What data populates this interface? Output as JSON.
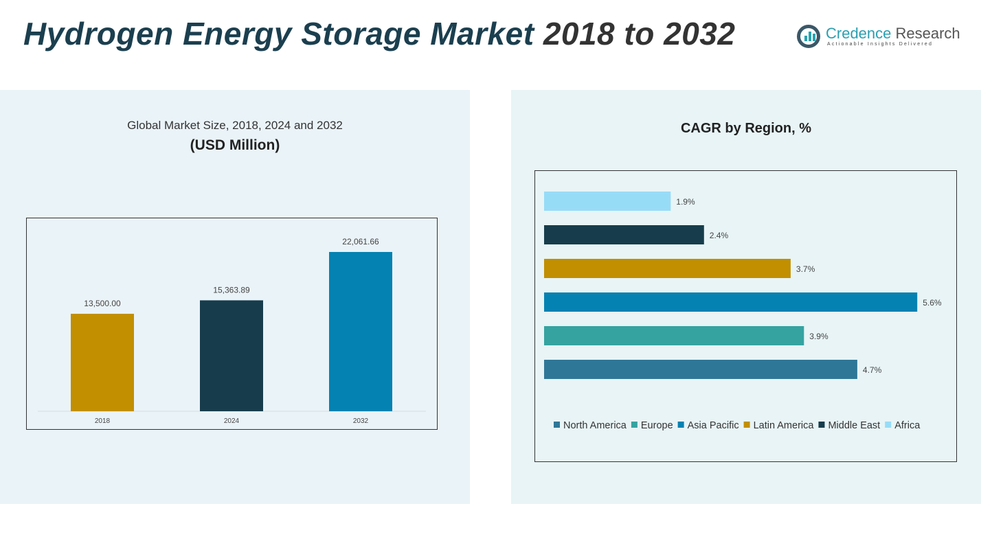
{
  "title": {
    "main": "Hydrogen Energy Storage Market",
    "years": "2018 to 2032"
  },
  "logo": {
    "name": "Credence",
    "name2": "Research",
    "tagline": "Actionable Insights Delivered"
  },
  "left_panel": {
    "title": "Global Market Size, 2018, 2024 and 2032",
    "subtitle": "(USD Million)"
  },
  "right_panel": {
    "title": "CAGR by Region, %"
  },
  "chart_data": [
    {
      "type": "bar",
      "title": "Global Market Size, 2018, 2024 and 2032",
      "ylabel": "(USD Million)",
      "categories": [
        "2018",
        "2024",
        "2032"
      ],
      "values": [
        13500.0,
        15363.89,
        22061.66
      ],
      "labels": [
        "13,500.00",
        "15,363.89",
        "22,061.66"
      ],
      "colors": [
        "#c18f00",
        "#173d4c",
        "#0482b2"
      ],
      "grid": false
    },
    {
      "type": "bar",
      "orientation": "horizontal",
      "title": "CAGR by Region, %",
      "categories": [
        "Africa",
        "Middle East",
        "Latin America",
        "Asia Pacific",
        "Europe",
        "North America"
      ],
      "values": [
        1.9,
        2.4,
        3.7,
        5.6,
        3.9,
        4.7
      ],
      "labels": [
        "1.9%",
        "2.4%",
        "3.7%",
        "5.6%",
        "3.9%",
        "4.7%"
      ],
      "colors": [
        "#97dcf7",
        "#173d4c",
        "#c18f00",
        "#0482b2",
        "#35a3a0",
        "#2f7797"
      ],
      "legend": {
        "position": "bottom",
        "items": [
          "North America",
          "Europe",
          "Asia Pacific",
          "Latin America",
          "Middle East",
          "Africa"
        ],
        "colors": [
          "#2f7797",
          "#35a3a0",
          "#0482b2",
          "#c18f00",
          "#173d4c",
          "#97dcf7"
        ]
      },
      "grid": false
    }
  ]
}
